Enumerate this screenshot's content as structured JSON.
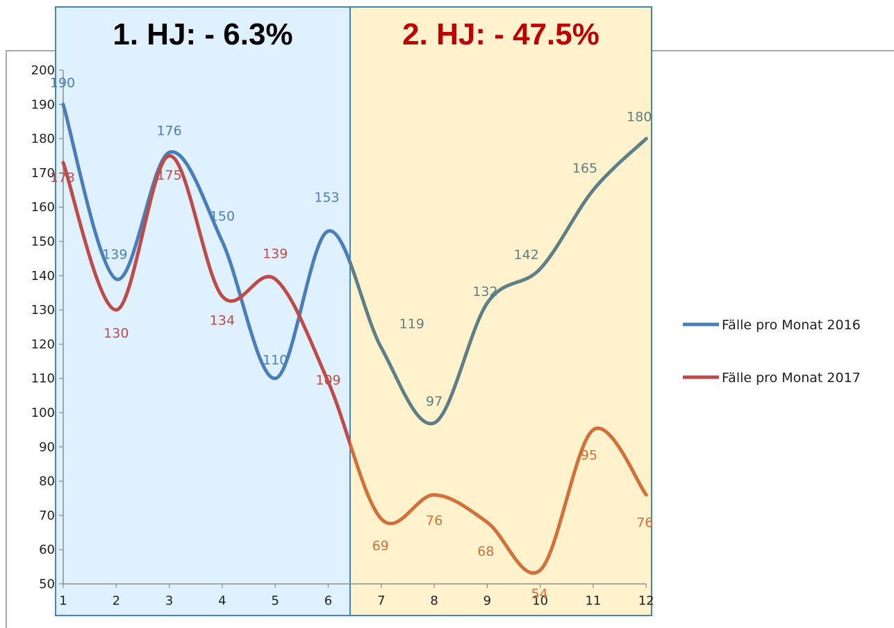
{
  "chart_data": {
    "type": "line",
    "smooth": true,
    "categories": [
      "1",
      "2",
      "3",
      "4",
      "5",
      "6",
      "7",
      "8",
      "9",
      "10",
      "11",
      "12"
    ],
    "ylim": [
      50,
      200
    ],
    "yticks": [
      50,
      60,
      70,
      80,
      90,
      100,
      110,
      120,
      130,
      140,
      150,
      160,
      170,
      180,
      190,
      200
    ],
    "series": [
      {
        "name": "Fälle pro Monat 2016",
        "color": "#4a7ebb",
        "values": [
          190,
          139,
          176,
          150,
          110,
          153,
          119,
          97,
          132,
          142,
          165,
          180
        ]
      },
      {
        "name": "Fälle pro Monat 2017",
        "color": "#be4b48",
        "values": [
          173,
          130,
          175,
          134,
          139,
          109,
          69,
          76,
          68,
          54,
          95,
          76
        ]
      }
    ],
    "second_half_colors": {
      "Fälle pro Monat 2016": "#5f7f86",
      "Fälle pro Monat 2017": "#d46f3a"
    },
    "legend_position": "right"
  },
  "annotations": {
    "h1": {
      "text": "1. HJ: - 6.3%",
      "color": "#000000",
      "background": "#dff1ff"
    },
    "h2": {
      "text": "2. HJ: - 47.5%",
      "color": "#c00000",
      "background": "#fff2cc"
    }
  }
}
